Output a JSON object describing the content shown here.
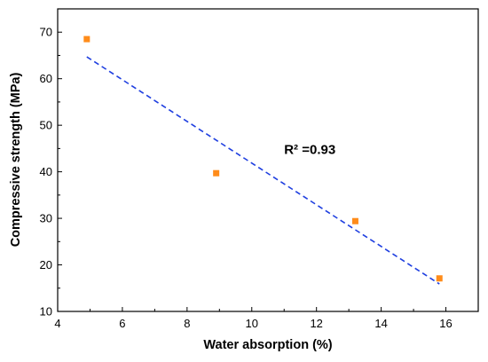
{
  "chart_data": {
    "type": "scatter",
    "title": "",
    "xlabel": "Water absorption (%)",
    "ylabel": "Compressive strength (MPa)",
    "xlim": [
      4,
      17
    ],
    "ylim": [
      10,
      75
    ],
    "x_ticks": [
      4,
      6,
      8,
      10,
      12,
      14,
      16
    ],
    "y_ticks": [
      10,
      20,
      30,
      40,
      50,
      60,
      70
    ],
    "x_tick_labels": [
      "4",
      "6",
      "8",
      "10",
      "12",
      "14",
      "16"
    ],
    "y_tick_labels": [
      "10",
      "20",
      "30",
      "40",
      "50",
      "60",
      "70"
    ],
    "grid": false,
    "legend": false,
    "series": [
      {
        "points": [
          {
            "x": 4.9,
            "y": 68.5
          },
          {
            "x": 8.9,
            "y": 39.7
          },
          {
            "x": 13.2,
            "y": 29.4
          },
          {
            "x": 15.8,
            "y": 17.1
          }
        ],
        "marker": "square",
        "color": "#ff8c1a"
      }
    ],
    "trendline": {
      "style": "dashed",
      "color": "#1f3fe0",
      "x": [
        4.9,
        15.8
      ],
      "y": [
        64.7,
        15.9
      ]
    },
    "annotations": [
      {
        "text": "R² =0.93",
        "x": 11.0,
        "y": 43.8
      }
    ]
  }
}
